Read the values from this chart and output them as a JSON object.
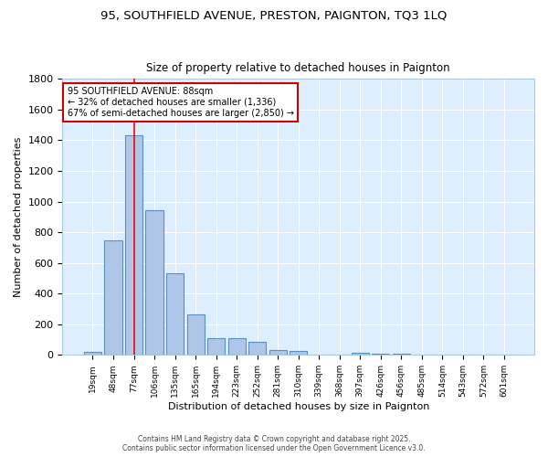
{
  "title": "95, SOUTHFIELD AVENUE, PRESTON, PAIGNTON, TQ3 1LQ",
  "subtitle": "Size of property relative to detached houses in Paignton",
  "xlabel": "Distribution of detached houses by size in Paignton",
  "ylabel": "Number of detached properties",
  "categories": [
    "19sqm",
    "48sqm",
    "77sqm",
    "106sqm",
    "135sqm",
    "165sqm",
    "194sqm",
    "223sqm",
    "252sqm",
    "281sqm",
    "310sqm",
    "339sqm",
    "368sqm",
    "397sqm",
    "426sqm",
    "456sqm",
    "485sqm",
    "514sqm",
    "543sqm",
    "572sqm",
    "601sqm"
  ],
  "values": [
    20,
    745,
    1435,
    945,
    535,
    265,
    108,
    108,
    85,
    30,
    25,
    5,
    5,
    15,
    10,
    10,
    5,
    0,
    0,
    0,
    5
  ],
  "bar_color": "#aec6e8",
  "bar_edge_color": "#5b8ec4",
  "background_color": "#ddeeff",
  "grid_color": "#ffffff",
  "red_line_x": 2,
  "annotation_title": "95 SOUTHFIELD AVENUE: 88sqm",
  "annotation_line1": "← 32% of detached houses are smaller (1,336)",
  "annotation_line2": "67% of semi-detached houses are larger (2,850) →",
  "annotation_box_color": "#ffffff",
  "annotation_box_edge": "#cc0000",
  "footer_line1": "Contains HM Land Registry data © Crown copyright and database right 2025.",
  "footer_line2": "Contains public sector information licensed under the Open Government Licence v3.0.",
  "ylim": [
    0,
    1800
  ],
  "yticks": [
    0,
    200,
    400,
    600,
    800,
    1000,
    1200,
    1400,
    1600,
    1800
  ],
  "fig_bg": "#ffffff"
}
